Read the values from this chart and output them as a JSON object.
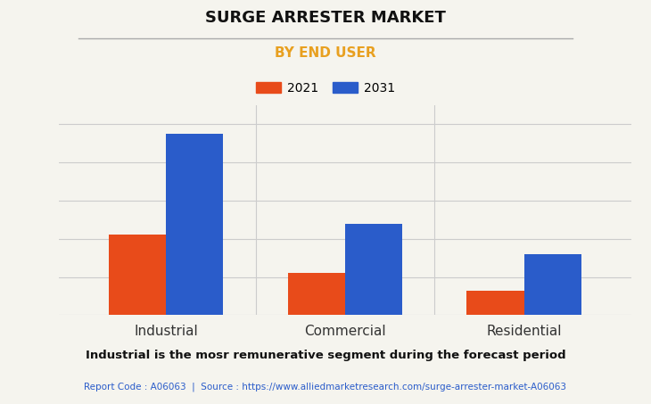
{
  "title": "SURGE ARRESTER MARKET",
  "subtitle": "BY END USER",
  "categories": [
    "Industrial",
    "Commercial",
    "Residential"
  ],
  "series": [
    {
      "label": "2021",
      "values": [
        4.2,
        2.2,
        1.3
      ],
      "color": "#e84b1a"
    },
    {
      "label": "2031",
      "values": [
        9.5,
        4.8,
        3.2
      ],
      "color": "#2a5cca"
    }
  ],
  "ylim": [
    0,
    11
  ],
  "background_color": "#f5f4ee",
  "grid_color": "#cccccc",
  "title_fontsize": 13,
  "subtitle_fontsize": 11,
  "subtitle_color": "#e8a020",
  "legend_fontsize": 10,
  "axis_label_fontsize": 11,
  "bar_width": 0.32,
  "footnote": "Industrial is the mosr remunerative segment during the forecast period",
  "source_text": "Report Code : A06063  |  Source : https://www.alliedmarketresearch.com/surge-arrester-market-A06063",
  "source_color": "#2a5cca"
}
